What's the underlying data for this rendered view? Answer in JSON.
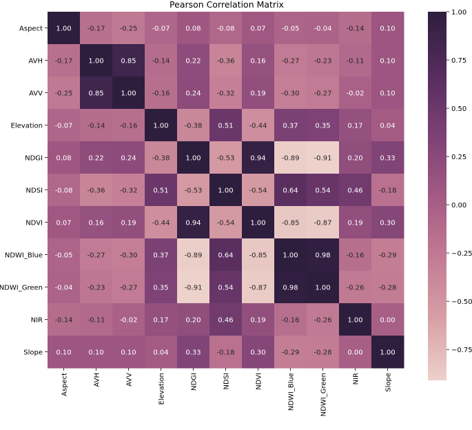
{
  "chart_data": {
    "type": "heatmap",
    "title": "Pearson Correlation Matrix",
    "xlabel": "",
    "ylabel": "",
    "categories": [
      "Aspect",
      "AVH",
      "AVV",
      "Elevation",
      "NDGI",
      "NDSI",
      "NDVI",
      "NDWI_Blue",
      "NDWI_Green",
      "NIR",
      "Slope"
    ],
    "values": [
      [
        1.0,
        -0.17,
        -0.25,
        -0.07,
        0.08,
        -0.08,
        0.07,
        -0.05,
        -0.04,
        -0.14,
        0.1
      ],
      [
        -0.17,
        1.0,
        0.85,
        -0.14,
        0.22,
        -0.36,
        0.16,
        -0.27,
        -0.23,
        -0.11,
        0.1
      ],
      [
        -0.25,
        0.85,
        1.0,
        -0.16,
        0.24,
        -0.32,
        0.19,
        -0.3,
        -0.27,
        -0.02,
        0.1
      ],
      [
        -0.07,
        -0.14,
        -0.16,
        1.0,
        -0.38,
        0.51,
        -0.44,
        0.37,
        0.35,
        0.17,
        0.04
      ],
      [
        0.08,
        0.22,
        0.24,
        -0.38,
        1.0,
        -0.53,
        0.94,
        -0.89,
        -0.91,
        0.2,
        0.33
      ],
      [
        -0.08,
        -0.36,
        -0.32,
        0.51,
        -0.53,
        1.0,
        -0.54,
        0.64,
        0.54,
        0.46,
        -0.18
      ],
      [
        0.07,
        0.16,
        0.19,
        -0.44,
        0.94,
        -0.54,
        1.0,
        -0.85,
        -0.87,
        0.19,
        0.3
      ],
      [
        -0.05,
        -0.27,
        -0.3,
        0.37,
        -0.89,
        0.64,
        -0.85,
        1.0,
        0.98,
        -0.16,
        -0.29
      ],
      [
        -0.04,
        -0.23,
        -0.27,
        0.35,
        -0.91,
        0.54,
        -0.87,
        0.98,
        1.0,
        -0.26,
        -0.28
      ],
      [
        -0.14,
        -0.11,
        -0.02,
        0.17,
        0.2,
        0.46,
        0.19,
        -0.16,
        -0.26,
        1.0,
        0.0
      ],
      [
        0.1,
        0.1,
        0.1,
        0.04,
        0.33,
        -0.18,
        0.3,
        -0.29,
        -0.28,
        0.0,
        1.0
      ]
    ],
    "colorbar": {
      "vmin": -0.91,
      "vmax": 1.0,
      "ticks": [
        1.0,
        0.75,
        0.5,
        0.25,
        0.0,
        -0.25,
        -0.5,
        -0.75
      ],
      "tick_labels": [
        "1.00",
        "0.75",
        "0.50",
        "0.25",
        "0.00",
        "−0.25",
        "−0.50",
        "−0.75"
      ]
    },
    "colormap": {
      "name": "light-to-dark purple",
      "stops": [
        "#edd1cb",
        "#d8a0a6",
        "#c27b94",
        "#a35a84",
        "#7d4175",
        "#552c5d",
        "#2d1e3e"
      ],
      "text_light": "#ffffff",
      "text_dark": "#262626"
    },
    "grid": false
  }
}
